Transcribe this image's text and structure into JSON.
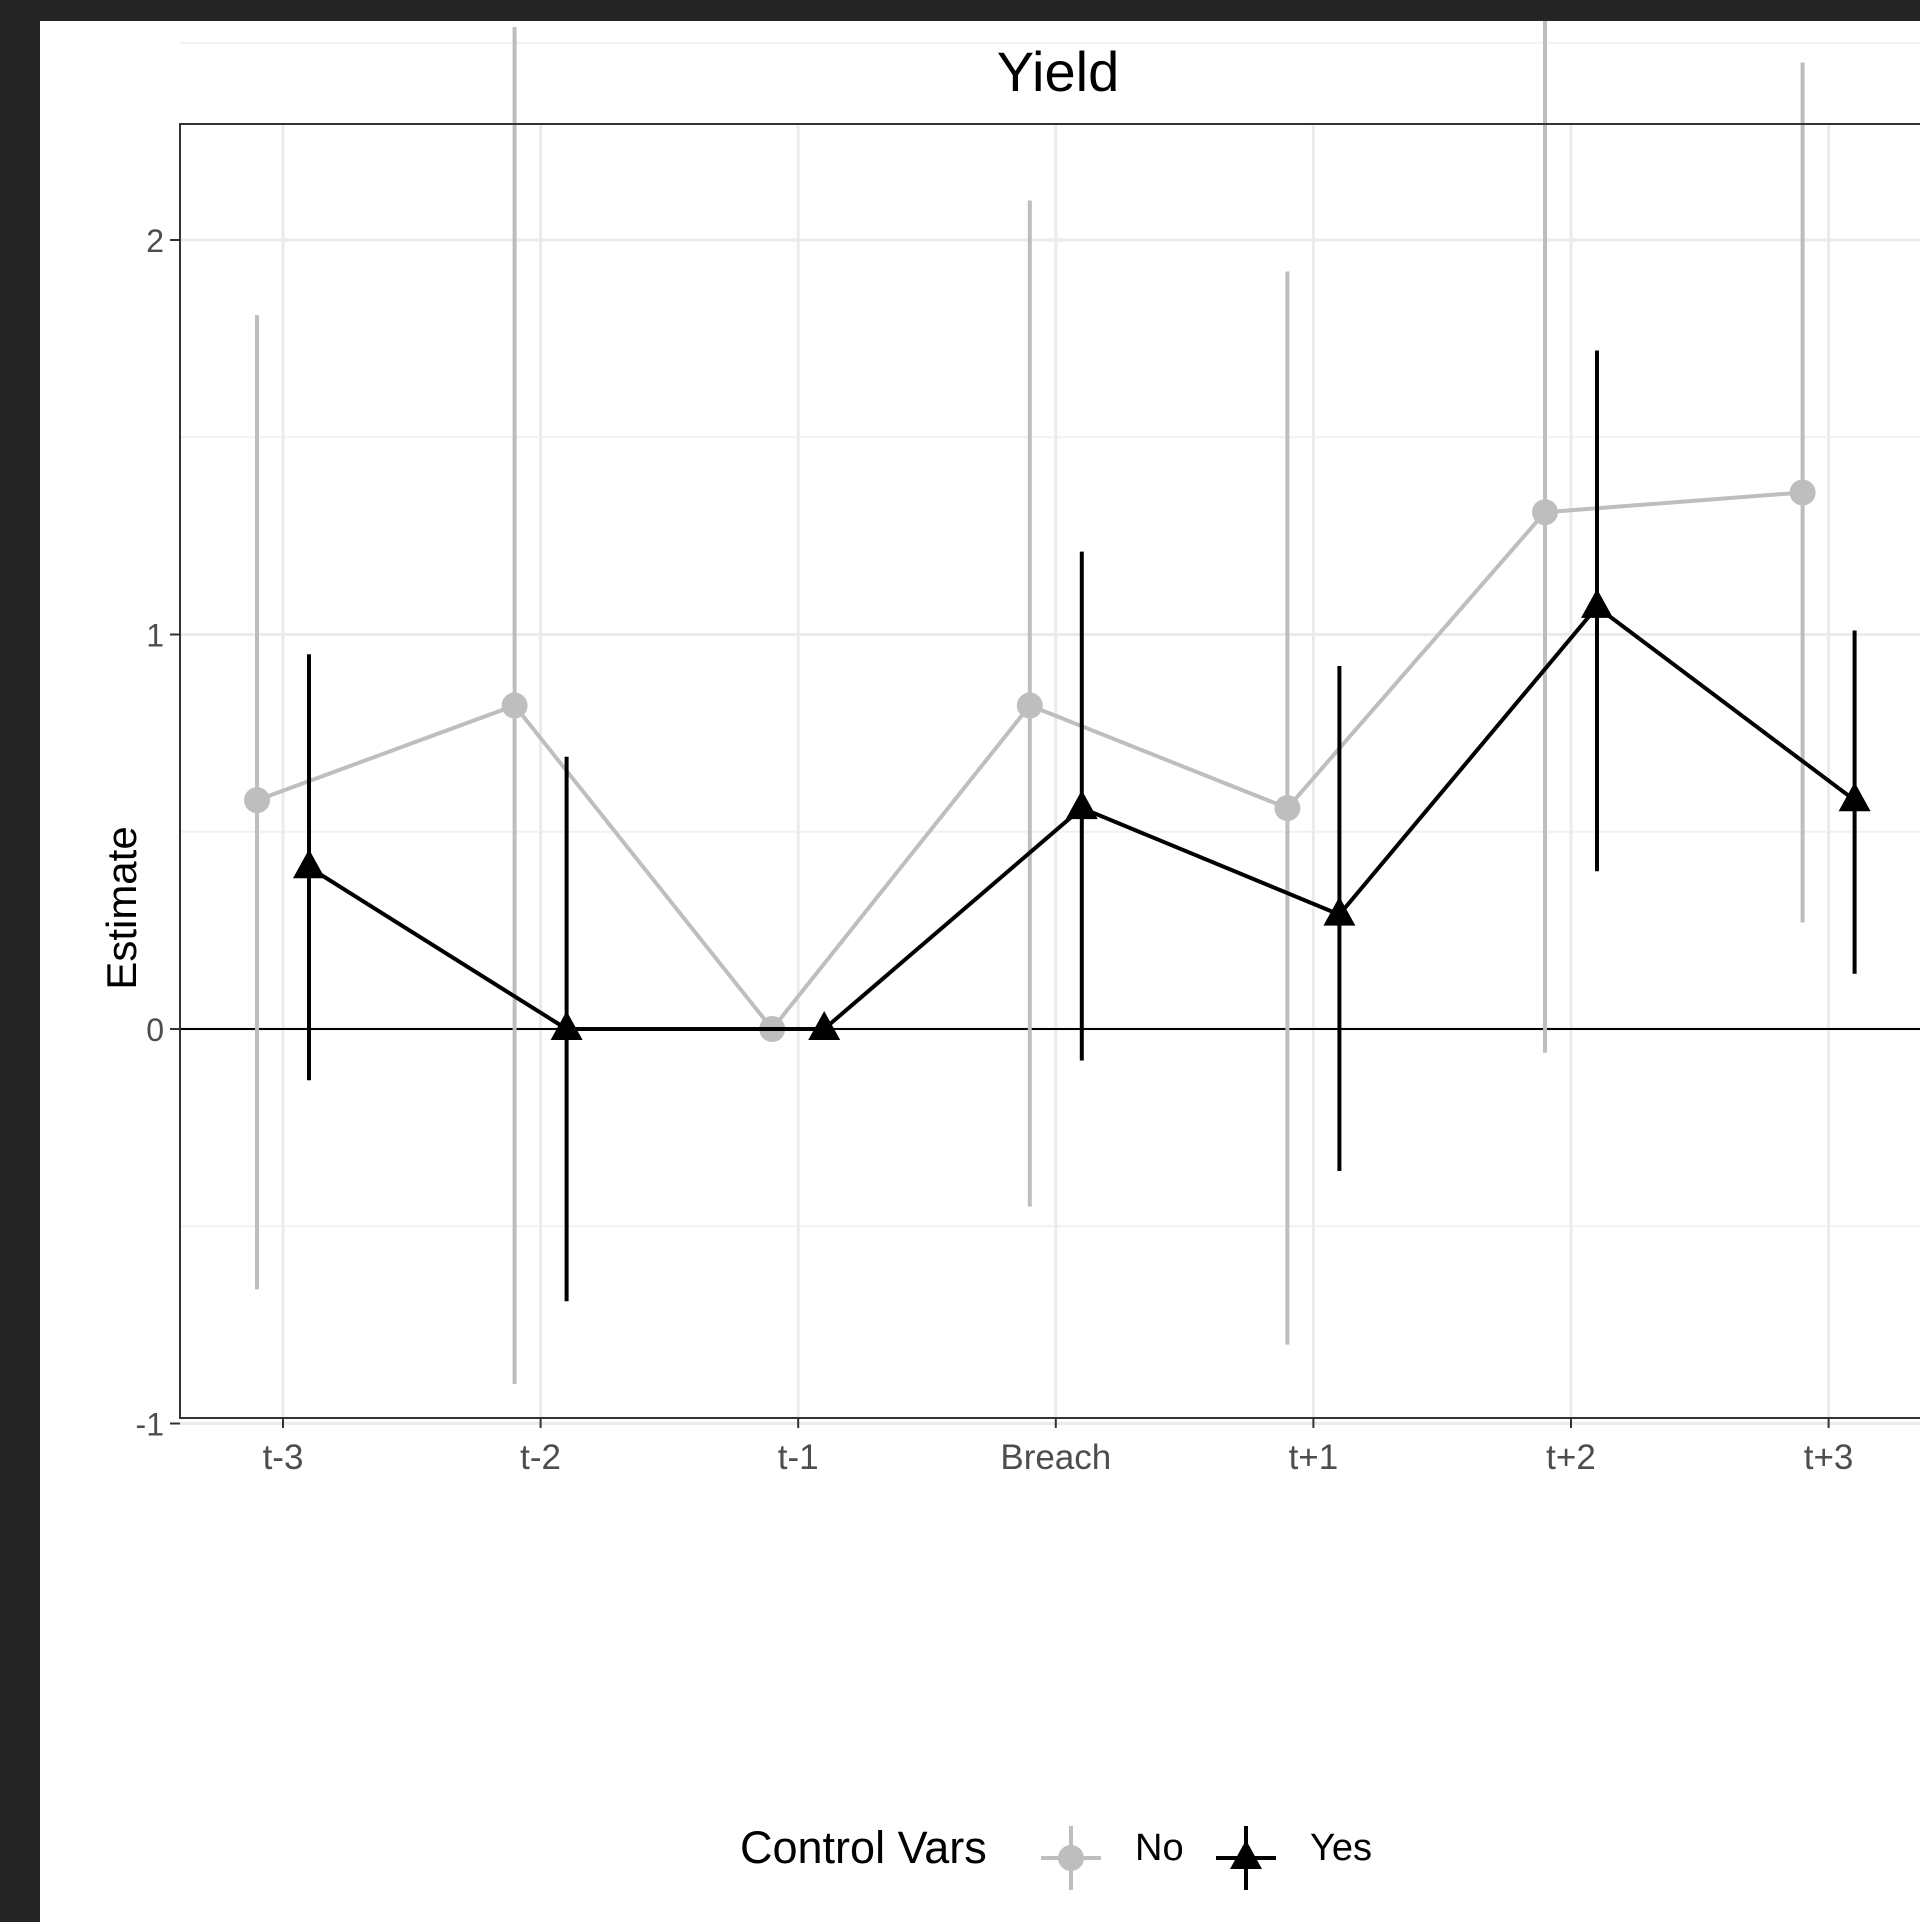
{
  "chart_data": {
    "type": "line",
    "title": "Yield",
    "ylabel": "Estimate",
    "xlabel": "",
    "categories": [
      "t-3",
      "t-2",
      "t-1",
      "Breach",
      "t+1",
      "t+2",
      "t+3"
    ],
    "yticks": [
      -1,
      0,
      1,
      2
    ],
    "ylim": [
      -1.08,
      2.88
    ],
    "grid": true,
    "zero_line": true,
    "legend": {
      "title": "Control Vars",
      "position": "bottom",
      "entries": [
        "No",
        "Yes"
      ]
    },
    "series": [
      {
        "name": "No",
        "color": "#bebebe",
        "marker": "circle",
        "values": [
          0.58,
          0.82,
          0.0,
          0.82,
          0.56,
          1.31,
          1.36
        ],
        "lower": [
          -0.66,
          -0.9,
          0.0,
          -0.45,
          -0.8,
          -0.06,
          0.27
        ],
        "upper": [
          1.81,
          2.54,
          0.0,
          2.1,
          1.92,
          2.68,
          2.45
        ]
      },
      {
        "name": "Yes",
        "color": "#000000",
        "marker": "triangle",
        "values": [
          0.41,
          0.0,
          0.0,
          0.56,
          0.29,
          1.07,
          0.58
        ],
        "lower": [
          -0.13,
          -0.69,
          0.0,
          -0.08,
          -0.36,
          0.4,
          0.14
        ],
        "upper": [
          0.95,
          0.69,
          0.0,
          1.21,
          0.92,
          1.72,
          1.01
        ]
      }
    ]
  }
}
